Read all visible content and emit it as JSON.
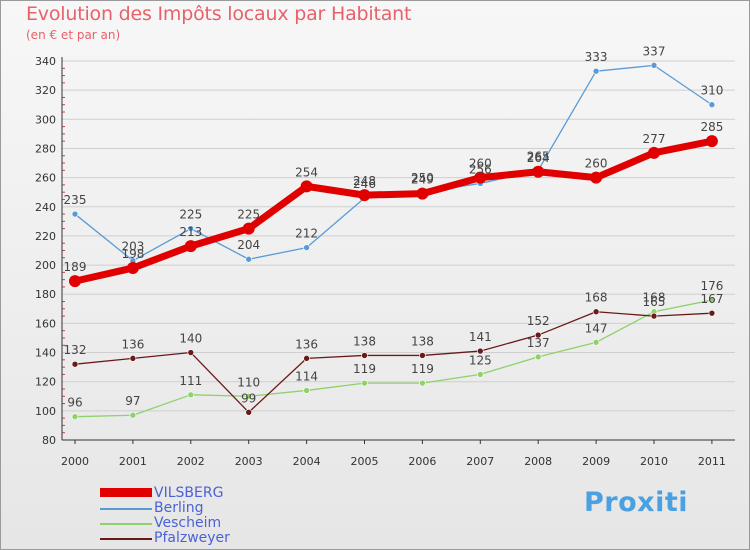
{
  "title": "Evolution des Impôts locaux par Habitant",
  "subtitle": "(en € et par an)",
  "logo_text": "Proxiti",
  "colors": {
    "title": "#e8616a",
    "axis": "#333333",
    "grid": "#cfcfcf",
    "legend_text": "#4a62d6"
  },
  "chart_data": {
    "type": "line",
    "title": "Evolution des Impôts locaux par Habitant",
    "subtitle": "(en € et par an)",
    "xlabel": "",
    "ylabel": "",
    "ylim": [
      80,
      340
    ],
    "yticks": [
      80,
      100,
      120,
      140,
      160,
      180,
      200,
      220,
      240,
      260,
      280,
      300,
      320,
      340
    ],
    "grid": true,
    "legend_position": "bottom-left",
    "categories": [
      "2000",
      "2001",
      "2002",
      "2003",
      "2004",
      "2005",
      "2006",
      "2007",
      "2008",
      "2009",
      "2010",
      "2011"
    ],
    "series": [
      {
        "name": "VILSBERG",
        "color": "#e00000",
        "values": [
          189,
          198,
          213,
          225,
          254,
          248,
          249,
          260,
          264,
          260,
          277,
          285
        ],
        "labels": [
          "189",
          "198",
          "213",
          "225",
          "254",
          "248",
          "249",
          "260",
          "264",
          "260",
          "277",
          "285"
        ]
      },
      {
        "name": "Berling",
        "color": "#5a9bd5",
        "values": [
          235,
          203,
          225,
          204,
          212,
          246,
          250,
          256,
          265,
          333,
          337,
          310
        ],
        "labels": [
          "235",
          "203",
          "225",
          "204",
          "212",
          "246",
          "250",
          "256",
          "265",
          "333",
          "337",
          "310"
        ]
      },
      {
        "name": "Vescheim",
        "color": "#8fd16a",
        "values": [
          96,
          97,
          111,
          110,
          114,
          119,
          119,
          125,
          137,
          147,
          168,
          176
        ],
        "labels": [
          "96",
          "97",
          "111",
          "110",
          "114",
          "119",
          "119",
          "125",
          "137",
          "147",
          "168",
          "176"
        ]
      },
      {
        "name": "Pfalzweyer",
        "color": "#6b1a1a",
        "values": [
          132,
          136,
          140,
          99,
          136,
          138,
          138,
          141,
          152,
          168,
          165,
          167
        ],
        "labels": [
          "132",
          "136",
          "140",
          "99",
          "136",
          "138",
          "138",
          "141",
          "152",
          "168",
          "165",
          "167"
        ]
      }
    ]
  }
}
